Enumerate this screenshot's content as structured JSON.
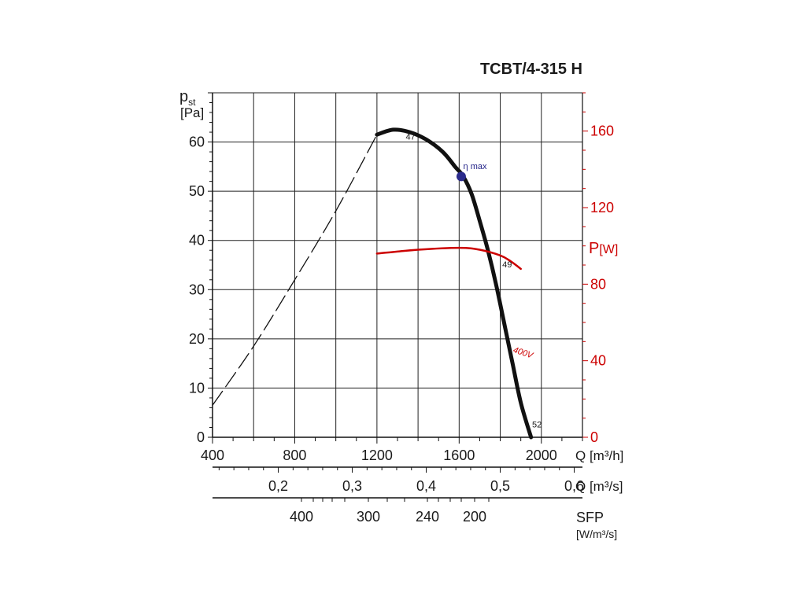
{
  "chart_data": {
    "type": "line",
    "title": "TCBT/4-315 H",
    "y_axis": {
      "label": "p",
      "label_sub": "st",
      "unit": "[Pa]",
      "ticks": [
        0,
        10,
        20,
        30,
        40,
        50,
        60
      ],
      "range": [
        0,
        70
      ]
    },
    "x_axis": {
      "label": "Q [m³/h]",
      "ticks": [
        400,
        800,
        1200,
        1600,
        2000
      ],
      "range": [
        400,
        2200
      ]
    },
    "secondary_x_axis": {
      "label": "Q [m³/s]",
      "ticks": [
        "0,2",
        "0,3",
        "0,4",
        "0,5",
        "0,6"
      ],
      "tick_values": [
        0.2,
        0.3,
        0.4,
        0.5,
        0.6
      ]
    },
    "sfp_axis": {
      "label": "SFP",
      "unit": "[W/m³/s]",
      "ticks": [
        "400",
        "300",
        "240",
        "200"
      ],
      "tick_values": [
        400,
        300,
        240,
        200
      ]
    },
    "right_axis": {
      "label": "P",
      "unit": "[W]",
      "color": "#cc0000",
      "ticks": [
        0,
        40,
        80,
        120,
        160
      ],
      "range": [
        0,
        180
      ]
    },
    "series": [
      {
        "name": "",
        "style": "solid",
        "color": "#111111",
        "x": [
          1200,
          1280,
          1360,
          1440,
          1520,
          1580,
          1620,
          1660,
          1700,
          1740,
          1780,
          1820,
          1860,
          1900,
          1950
        ],
        "y": [
          61.5,
          62.5,
          62.0,
          60.5,
          58.0,
          55.0,
          53.0,
          49.5,
          44.0,
          38.0,
          31.0,
          23.0,
          15.0,
          7.0,
          0.0
        ]
      },
      {
        "name": "",
        "style": "dashed",
        "color": "#111111",
        "x": [
          400,
          600,
          800,
          1000,
          1200
        ],
        "y": [
          6.5,
          18.5,
          32.0,
          46.0,
          61.5
        ]
      },
      {
        "name": "400V",
        "axis": "right",
        "style": "solid",
        "color": "#cc0000",
        "x": [
          1200,
          1400,
          1600,
          1700,
          1800,
          1850,
          1900
        ],
        "y": [
          96,
          98,
          99,
          98,
          95,
          92,
          88
        ]
      }
    ],
    "annotations": [
      {
        "text": "47",
        "x": 1340,
        "y": 60.5
      },
      {
        "text": "η max",
        "x": 1620,
        "y": 54.5,
        "color": "#222288"
      },
      {
        "text": "49",
        "x": 1810,
        "y": 34.5
      },
      {
        "text": "52",
        "x": 1955,
        "y": 2.0
      },
      {
        "text": "400V",
        "x": 1860,
        "y": 17.3,
        "color": "#cc0000"
      }
    ],
    "max_efficiency_point": {
      "x": 1610,
      "y": 53,
      "color": "#2b2b8c"
    },
    "grid": true
  }
}
